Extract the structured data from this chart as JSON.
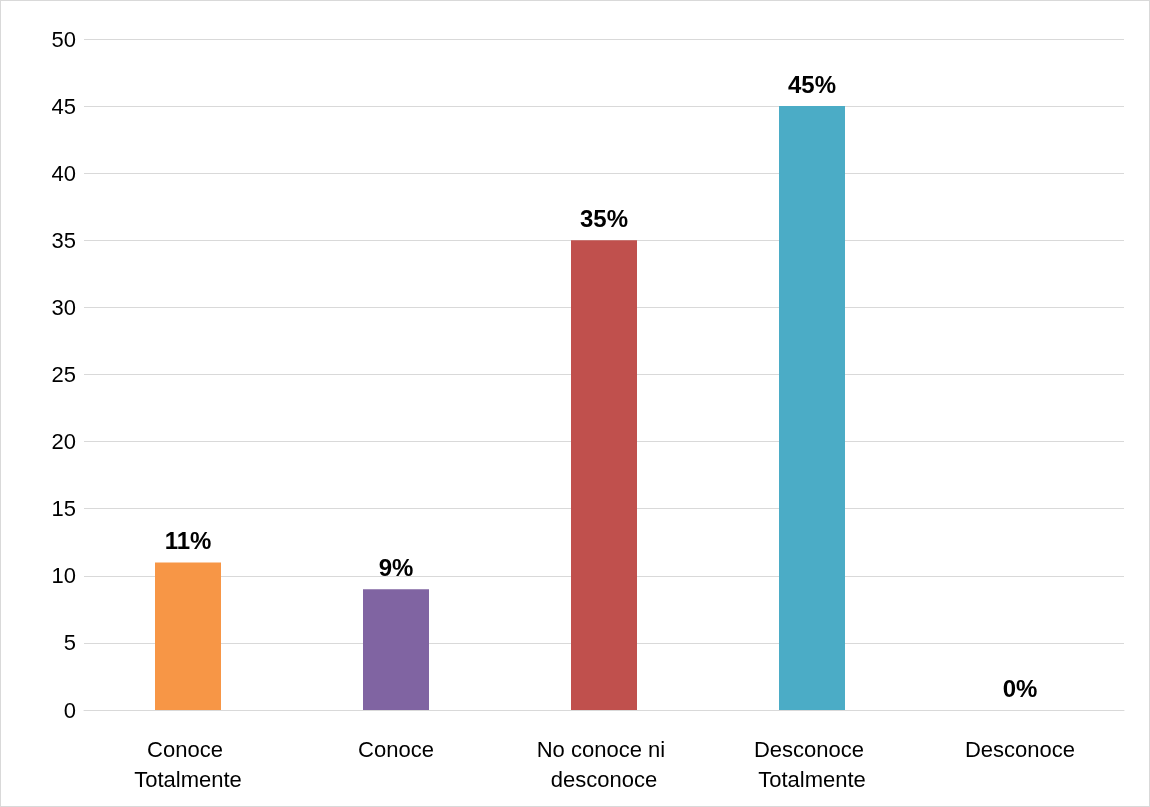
{
  "chart_data": {
    "type": "bar",
    "categories": [
      "Conoce Totalmente",
      "Conoce",
      "No conoce ni desconoce",
      "Desconoce Totalmente",
      "Desconoce"
    ],
    "values": [
      11,
      9,
      35,
      45,
      0
    ],
    "colors": [
      "#f79646",
      "#8064a2",
      "#c0504d",
      "#4bacc6",
      "#4bacc6"
    ],
    "value_labels": [
      "11%",
      "9%",
      "35%",
      "45%",
      "0%"
    ],
    "ylim": [
      0,
      50
    ],
    "yticks": [
      0,
      5,
      10,
      15,
      20,
      25,
      30,
      35,
      40,
      45,
      50
    ],
    "grid": "y"
  }
}
